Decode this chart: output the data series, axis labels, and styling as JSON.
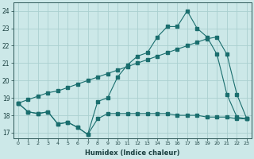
{
  "xlabel": "Humidex (Indice chaleur)",
  "bg_color": "#cce8e8",
  "grid_color": "#aad0d0",
  "line_color": "#1a6e6e",
  "ylim": [
    16.7,
    24.5
  ],
  "xlim": [
    -0.5,
    23.5
  ],
  "yticks": [
    17,
    18,
    19,
    20,
    21,
    22,
    23,
    24
  ],
  "xticks": [
    0,
    1,
    2,
    3,
    4,
    5,
    6,
    7,
    8,
    9,
    10,
    11,
    12,
    13,
    14,
    15,
    16,
    17,
    18,
    19,
    20,
    21,
    22,
    23
  ],
  "line1_x": [
    0,
    1,
    2,
    3,
    4,
    5,
    6,
    7,
    8,
    9,
    10,
    11,
    12,
    13,
    14,
    15,
    16,
    17,
    18,
    19,
    20,
    21,
    22,
    23
  ],
  "line1_y": [
    18.7,
    18.2,
    18.1,
    18.2,
    17.5,
    17.6,
    17.3,
    16.9,
    17.8,
    18.1,
    18.1,
    18.1,
    18.1,
    18.1,
    18.1,
    18.1,
    18.0,
    18.0,
    18.0,
    17.9,
    17.9,
    17.9,
    17.8,
    17.8
  ],
  "line2_x": [
    0,
    1,
    2,
    3,
    4,
    5,
    6,
    7,
    8,
    9,
    10,
    11,
    12,
    13,
    14,
    15,
    16,
    17,
    18,
    19,
    20,
    21,
    22,
    23
  ],
  "line2_y": [
    18.7,
    18.2,
    18.1,
    18.2,
    17.5,
    17.6,
    17.3,
    16.9,
    18.8,
    19.0,
    20.2,
    20.9,
    21.4,
    21.6,
    22.5,
    23.1,
    23.1,
    24.0,
    23.0,
    22.5,
    21.5,
    19.2,
    17.9,
    17.8
  ],
  "line3_x": [
    0,
    1,
    2,
    3,
    4,
    5,
    6,
    7,
    8,
    9,
    10,
    11,
    12,
    13,
    14,
    15,
    16,
    17,
    18,
    19,
    20,
    21,
    22,
    23
  ],
  "line3_y": [
    18.7,
    18.9,
    19.1,
    19.3,
    19.4,
    19.6,
    19.8,
    20.0,
    20.2,
    20.4,
    20.6,
    20.8,
    21.0,
    21.2,
    21.4,
    21.6,
    21.8,
    22.0,
    22.2,
    22.4,
    22.5,
    21.5,
    19.2,
    17.8
  ]
}
